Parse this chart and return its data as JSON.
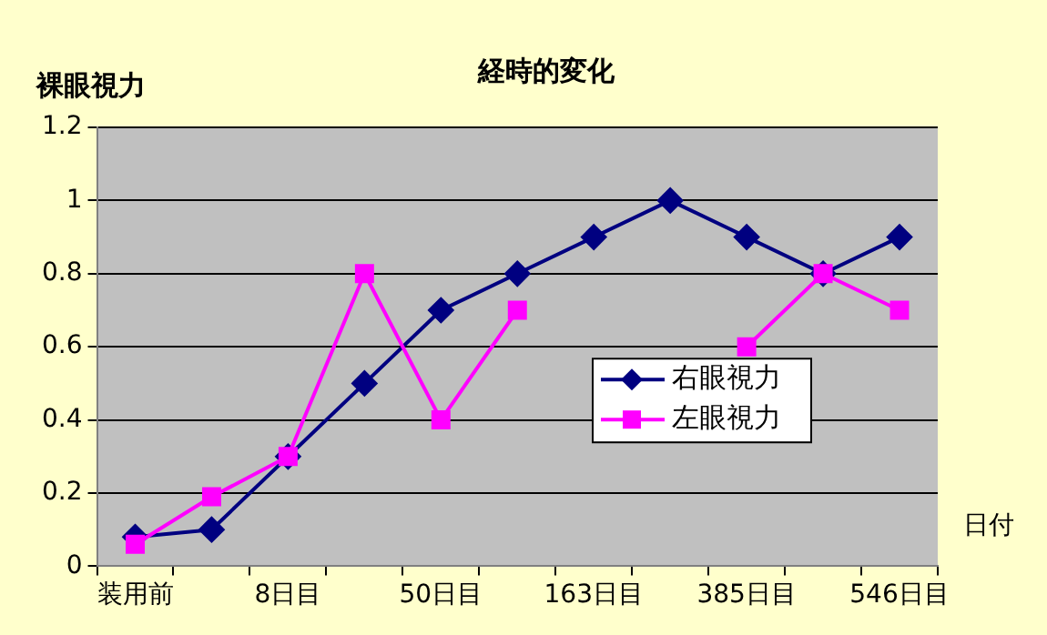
{
  "chart_data": {
    "type": "line",
    "title": "経時的変化",
    "ylabel": "裸眼視力",
    "xlabel": "日付",
    "categories": [
      "装用前",
      null,
      "8日目",
      null,
      "50日目",
      null,
      "163日目",
      null,
      "385日目",
      null,
      "546日目"
    ],
    "series": [
      {
        "name": "右眼視力",
        "color": "#000080",
        "marker": "diamond",
        "values": [
          0.08,
          0.1,
          0.3,
          0.5,
          0.7,
          0.8,
          0.9,
          1.0,
          0.9,
          0.8,
          0.9
        ]
      },
      {
        "name": "左眼視力",
        "color": "#ff00ff",
        "marker": "square",
        "values": [
          0.06,
          0.19,
          0.3,
          0.8,
          0.4,
          0.7,
          null,
          null,
          0.6,
          0.8,
          0.7
        ]
      }
    ],
    "ylim": [
      0,
      1.2
    ],
    "yticks": [
      0,
      0.2,
      0.4,
      0.6,
      0.8,
      1,
      1.2
    ],
    "grid": "y",
    "legend": "right"
  }
}
